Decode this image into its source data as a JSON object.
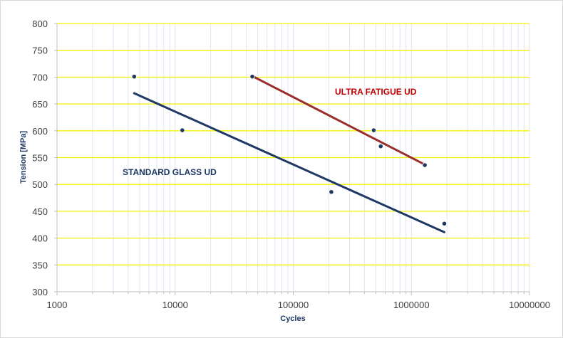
{
  "chart_data": {
    "type": "scatter",
    "xlabel": "Cycles",
    "ylabel": "Tension [MPa]",
    "xscale": "log",
    "xlim": [
      1000,
      10000000
    ],
    "ylim": [
      300,
      800
    ],
    "ystep": 50,
    "x_tick_labels": [
      "1000",
      "10000",
      "100000",
      "1000000",
      "10000000"
    ],
    "y_tick_labels": [
      "300",
      "350",
      "400",
      "450",
      "500",
      "550",
      "600",
      "650",
      "700",
      "750",
      "800"
    ],
    "grid": {
      "horizontal": true,
      "vertical": true,
      "horizontal_color": "#f2f200",
      "vertical_color": "#dde6f2"
    },
    "series": [
      {
        "name": "STANDARD GLASS UD",
        "color": "#1f3864",
        "points": [
          [
            4500,
            701
          ],
          [
            11500,
            601
          ],
          [
            210000,
            486
          ],
          [
            1900000,
            427
          ]
        ],
        "trendline": [
          [
            4500,
            670
          ],
          [
            1900000,
            411
          ]
        ]
      },
      {
        "name": "ULTRA FATIGUE UD",
        "color": "#9b2d2d",
        "points": [
          [
            45000,
            701
          ],
          [
            480000,
            601
          ],
          [
            550000,
            571
          ],
          [
            1300000,
            536
          ]
        ],
        "trendline": [
          [
            45000,
            702
          ],
          [
            1300000,
            537
          ]
        ]
      }
    ],
    "annotations": [
      {
        "text": "ULTRA FATIGUE UD",
        "color": "#c00000",
        "x": 0,
        "y": 0
      },
      {
        "text": "STANDARD GLASS UD",
        "color": "#1f3864",
        "x": 0,
        "y": 0
      }
    ]
  }
}
